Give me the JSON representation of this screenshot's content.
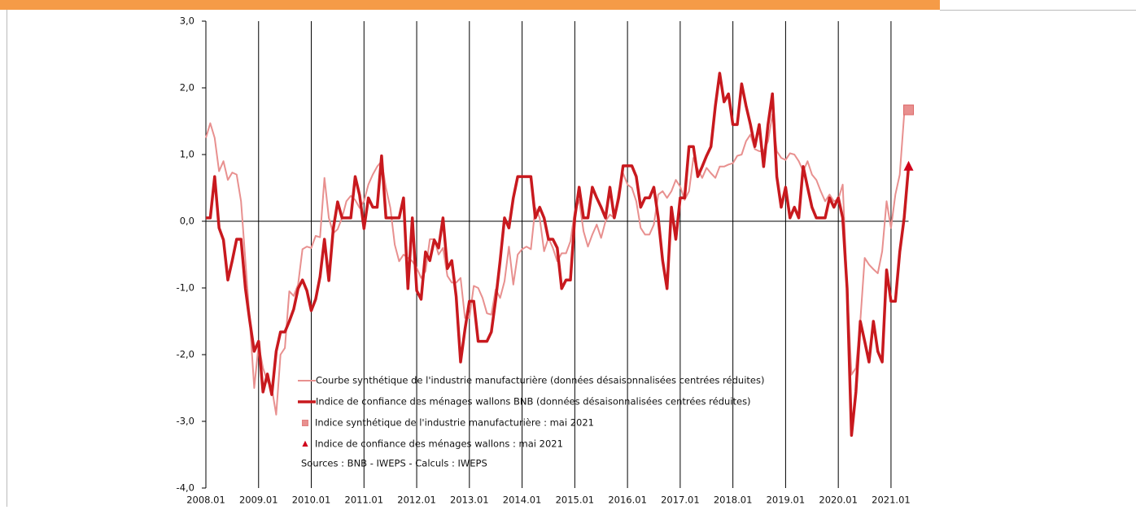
{
  "chart_data": {
    "type": "line",
    "x": [
      "2008.01",
      "2008.02",
      "2008.03",
      "2008.04",
      "2008.05",
      "2008.06",
      "2008.07",
      "2008.08",
      "2008.09",
      "2008.10",
      "2008.11",
      "2008.12",
      "2009.01",
      "2009.02",
      "2009.03",
      "2009.04",
      "2009.05",
      "2009.06",
      "2009.07",
      "2009.08",
      "2009.09",
      "2009.10",
      "2009.11",
      "2009.12",
      "2010.01",
      "2010.02",
      "2010.03",
      "2010.04",
      "2010.05",
      "2010.06",
      "2010.07",
      "2010.08",
      "2010.09",
      "2010.10",
      "2010.11",
      "2010.12",
      "2011.01",
      "2011.02",
      "2011.03",
      "2011.04",
      "2011.05",
      "2011.06",
      "2011.07",
      "2011.08",
      "2011.09",
      "2011.10",
      "2011.11",
      "2011.12",
      "2012.01",
      "2012.02",
      "2012.03",
      "2012.04",
      "2012.05",
      "2012.06",
      "2012.07",
      "2012.08",
      "2012.09",
      "2012.10",
      "2012.11",
      "2012.12",
      "2013.01",
      "2013.02",
      "2013.03",
      "2013.04",
      "2013.05",
      "2013.06",
      "2013.07",
      "2013.08",
      "2013.09",
      "2013.10",
      "2013.11",
      "2013.12",
      "2014.01",
      "2014.02",
      "2014.03",
      "2014.04",
      "2014.05",
      "2014.06",
      "2014.07",
      "2014.08",
      "2014.09",
      "2014.10",
      "2014.11",
      "2014.12",
      "2015.01",
      "2015.02",
      "2015.03",
      "2015.04",
      "2015.05",
      "2015.06",
      "2015.07",
      "2015.08",
      "2015.09",
      "2015.10",
      "2015.11",
      "2015.12",
      "2016.01",
      "2016.02",
      "2016.03",
      "2016.04",
      "2016.05",
      "2016.06",
      "2016.07",
      "2016.08",
      "2016.09",
      "2016.10",
      "2016.11",
      "2016.12",
      "2017.01",
      "2017.02",
      "2017.03",
      "2017.04",
      "2017.05",
      "2017.06",
      "2017.07",
      "2017.08",
      "2017.09",
      "2017.10",
      "2017.11",
      "2017.12",
      "2018.01",
      "2018.02",
      "2018.03",
      "2018.04",
      "2018.05",
      "2018.06",
      "2018.07",
      "2018.08",
      "2018.09",
      "2018.10",
      "2018.11",
      "2018.12",
      "2019.01",
      "2019.02",
      "2019.03",
      "2019.04",
      "2019.05",
      "2019.06",
      "2019.07",
      "2019.08",
      "2019.09",
      "2019.10",
      "2019.11",
      "2019.12",
      "2020.01",
      "2020.02",
      "2020.03",
      "2020.04",
      "2020.05",
      "2020.06",
      "2020.07",
      "2020.08",
      "2020.09",
      "2020.10",
      "2020.11",
      "2020.12",
      "2021.01",
      "2021.02",
      "2021.03",
      "2021.04",
      "2021.05"
    ],
    "xticks": [
      "2008.01",
      "2009.01",
      "2010.01",
      "2011.01",
      "2012.01",
      "2013.01",
      "2014.01",
      "2015.01",
      "2016.01",
      "2017.01",
      "2018.01",
      "2019.01",
      "2020.01",
      "2021.01"
    ],
    "ylim": [
      -4,
      3
    ],
    "yticks": [
      {
        "value": -4,
        "label": "-4,0"
      },
      {
        "value": -3,
        "label": "-3,0"
      },
      {
        "value": -2,
        "label": "-2,0"
      },
      {
        "value": -1,
        "label": "-1,0"
      },
      {
        "value": 0,
        "label": "0,0"
      },
      {
        "value": 1,
        "label": "1,0"
      },
      {
        "value": 2,
        "label": "2,0"
      },
      {
        "value": 3,
        "label": "3,0"
      }
    ],
    "series": [
      {
        "name": "Courbe synthétique de l'industrie manufacturière (données désaisonnalisées centrées réduites)",
        "color": "#e8908f",
        "width": 2,
        "values": [
          1.25,
          1.47,
          1.25,
          0.75,
          0.9,
          0.62,
          0.73,
          0.7,
          0.3,
          -0.6,
          -1.5,
          -2.5,
          -1.85,
          -2.2,
          -2.4,
          -2.5,
          -2.9,
          -2.0,
          -1.9,
          -1.05,
          -1.12,
          -0.95,
          -0.42,
          -0.38,
          -0.4,
          -0.22,
          -0.24,
          0.65,
          0.05,
          -0.18,
          -0.12,
          0.05,
          0.3,
          0.38,
          0.32,
          0.2,
          0.3,
          0.55,
          0.7,
          0.82,
          0.9,
          0.5,
          0.2,
          -0.35,
          -0.6,
          -0.5,
          -0.55,
          -0.6,
          -0.7,
          -0.85,
          -0.75,
          -0.27,
          -0.27,
          -0.5,
          -0.4,
          -0.82,
          -0.92,
          -0.92,
          -0.85,
          -1.45,
          -1.45,
          -0.97,
          -1.0,
          -1.15,
          -1.38,
          -1.4,
          -1.02,
          -1.15,
          -0.9,
          -0.38,
          -0.95,
          -0.5,
          -0.42,
          -0.38,
          -0.42,
          0.2,
          0.05,
          -0.45,
          -0.25,
          -0.4,
          -0.6,
          -0.48,
          -0.48,
          -0.3,
          0.15,
          0.32,
          -0.15,
          -0.38,
          -0.2,
          -0.05,
          -0.25,
          0.0,
          0.1,
          0.05,
          0.45,
          0.72,
          0.55,
          0.5,
          0.3,
          -0.1,
          -0.2,
          -0.2,
          -0.05,
          0.4,
          0.45,
          0.35,
          0.45,
          0.62,
          0.52,
          0.32,
          0.45,
          0.95,
          0.78,
          0.65,
          0.8,
          0.72,
          0.65,
          0.82,
          0.82,
          0.85,
          0.87,
          0.98,
          1.0,
          1.2,
          1.3,
          1.08,
          1.05,
          1.05,
          1.2,
          1.6,
          1.05,
          0.95,
          0.92,
          1.02,
          1.0,
          0.9,
          0.75,
          0.9,
          0.7,
          0.62,
          0.45,
          0.3,
          0.4,
          0.3,
          0.33,
          0.55,
          -1.0,
          -2.3,
          -2.2,
          -1.5,
          -0.55,
          -0.65,
          -0.72,
          -0.78,
          -0.45,
          0.3,
          -0.1,
          0.4,
          0.7,
          1.6,
          1.67
        ]
      },
      {
        "name": "Indice de confiance des ménages wallons BNB (données désaisonnalisées centrées réduites)",
        "color": "#c8191e",
        "width": 3.5,
        "values": [
          0.05,
          0.05,
          0.67,
          -0.1,
          -0.28,
          -0.88,
          -0.59,
          -0.27,
          -0.27,
          -1.01,
          -1.5,
          -1.95,
          -1.8,
          -2.56,
          -2.29,
          -2.6,
          -1.95,
          -1.66,
          -1.66,
          -1.5,
          -1.32,
          -1.01,
          -0.88,
          -1.04,
          -1.34,
          -1.17,
          -0.83,
          -0.27,
          -0.89,
          -0.12,
          0.29,
          0.05,
          0.05,
          0.05,
          0.67,
          0.39,
          -0.11,
          0.35,
          0.21,
          0.21,
          0.98,
          0.05,
          0.05,
          0.05,
          0.05,
          0.35,
          -1.01,
          0.05,
          -1.04,
          -1.17,
          -0.46,
          -0.59,
          -0.28,
          -0.4,
          0.05,
          -0.71,
          -0.59,
          -1.13,
          -2.11,
          -1.62,
          -1.2,
          -1.2,
          -1.8,
          -1.8,
          -1.8,
          -1.66,
          -1.17,
          -0.59,
          0.05,
          -0.1,
          0.35,
          0.67,
          0.67,
          0.67,
          0.67,
          0.05,
          0.21,
          0.05,
          -0.27,
          -0.27,
          -0.4,
          -1.01,
          -0.88,
          -0.88,
          0.05,
          0.51,
          0.05,
          0.05,
          0.51,
          0.35,
          0.21,
          0.05,
          0.51,
          0.05,
          0.35,
          0.83,
          0.83,
          0.83,
          0.67,
          0.21,
          0.35,
          0.35,
          0.51,
          0.05,
          -0.59,
          -1.01,
          0.21,
          -0.27,
          0.35,
          0.35,
          1.12,
          1.12,
          0.67,
          0.82,
          0.98,
          1.12,
          1.73,
          2.22,
          1.79,
          1.91,
          1.45,
          1.45,
          2.06,
          1.73,
          1.45,
          1.12,
          1.45,
          0.82,
          1.45,
          1.91,
          0.67,
          0.21,
          0.51,
          0.05,
          0.21,
          0.05,
          0.82,
          0.51,
          0.21,
          0.05,
          0.05,
          0.05,
          0.35,
          0.21,
          0.35,
          0.05,
          -1.01,
          -3.21,
          -2.56,
          -1.5,
          -1.8,
          -2.11,
          -1.5,
          -1.95,
          -2.11,
          -0.73,
          -1.2,
          -1.2,
          -0.46,
          0.05,
          0.82
        ]
      }
    ],
    "markers": [
      {
        "name": "Indice synthétique de l'industrie manufacturière : mai 2021",
        "shape": "square",
        "color": "#e8908f",
        "x": "2021.05",
        "value": 1.67
      },
      {
        "name": "Indice de confiance des ménages wallons : mai 2021",
        "shape": "triangle",
        "color": "#d0021b",
        "x": "2021.05",
        "value": 0.82
      }
    ],
    "note": "Sources : BNB - IWEPS - Calculs : IWEPS"
  }
}
